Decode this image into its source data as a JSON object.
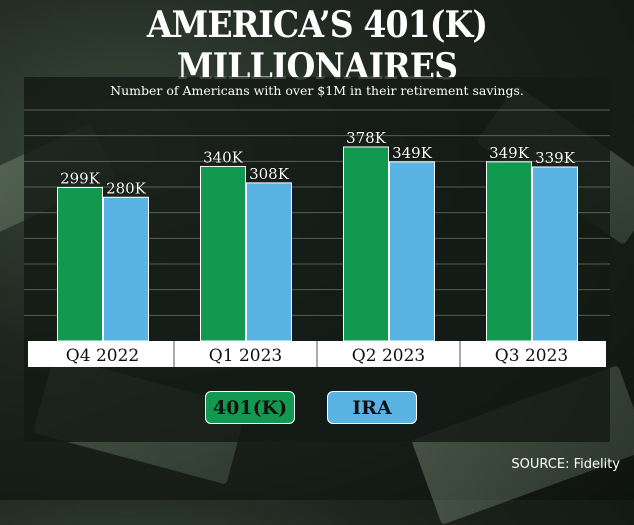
{
  "title": "AMERICA’S 401(K) MILLIONAIRES",
  "chart_data": {
    "type": "bar",
    "title": "AMERICA’S 401(K) MILLIONAIRES",
    "subtitle": "Number of Americans with over $1M in their retirement savings.",
    "categories": [
      "Q4 2022",
      "Q1 2023",
      "Q2 2023",
      "Q3 2023"
    ],
    "series": [
      {
        "name": "401(K)",
        "color": "#119a4f",
        "values": [
          299,
          340,
          378,
          349
        ],
        "labels": [
          "299K",
          "340K",
          "378K",
          "349K"
        ]
      },
      {
        "name": "IRA",
        "color": "#5ab4e3",
        "values": [
          280,
          308,
          349,
          339
        ],
        "labels": [
          "280K",
          "308K",
          "349K",
          "339K"
        ]
      }
    ],
    "xlabel": "",
    "ylabel": "",
    "ylim": [
      0,
      450
    ],
    "grid_step": 50,
    "grid": true,
    "legend_position": "bottom-center"
  },
  "source": "SOURCE: Fidelity"
}
